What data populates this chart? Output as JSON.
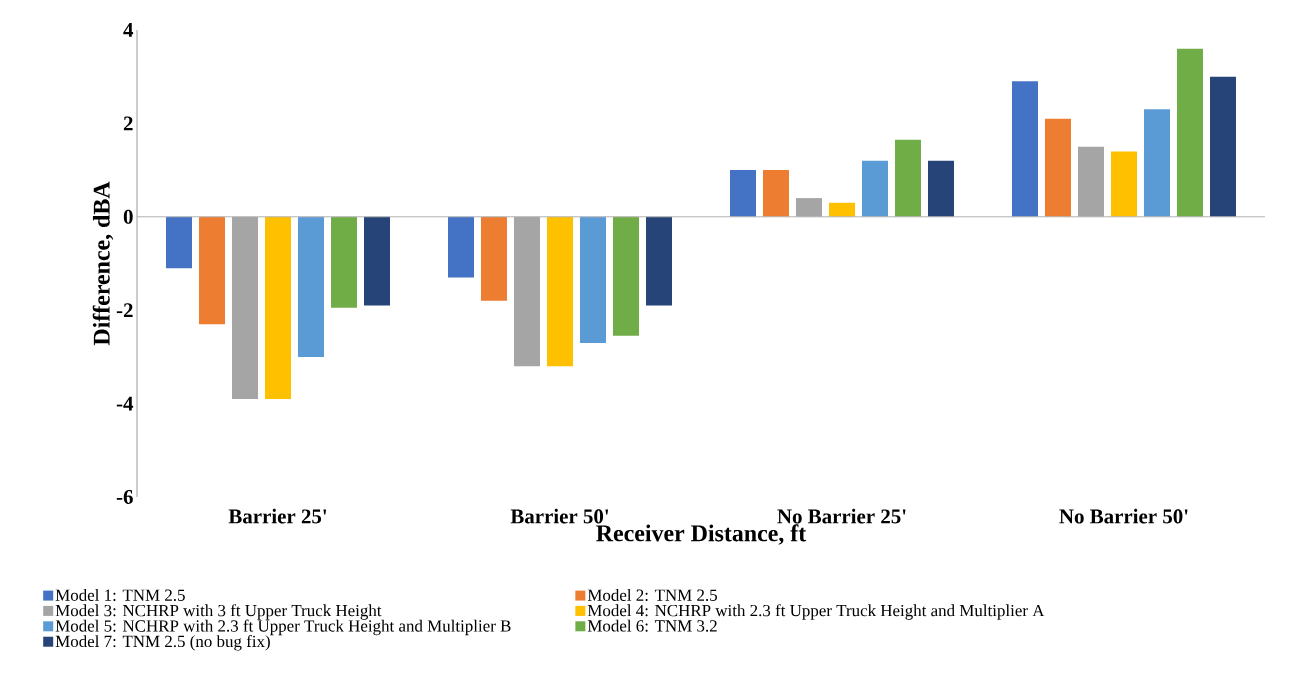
{
  "chart_data": {
    "type": "bar",
    "xlabel": "Receiver Distance, ft",
    "ylabel": "Difference, dBA",
    "categories": [
      "Barrier  25'",
      "Barrier  50'",
      "No Barrier 25'",
      "No Barrier 50'"
    ],
    "series": [
      {
        "name": "Model 1: TNM 2.5",
        "color": "#4472c4",
        "values": [
          -1.1,
          -1.3,
          1.0,
          2.9
        ]
      },
      {
        "name": "Model 2: TNM 2.5",
        "color": "#ed7d31",
        "values": [
          -2.3,
          -1.8,
          1.0,
          2.1
        ]
      },
      {
        "name": "Model 3: NCHRP with 3 ft Upper Truck Height",
        "color": "#a5a5a5",
        "values": [
          -3.9,
          -3.2,
          0.4,
          1.5
        ]
      },
      {
        "name": "Model 4: NCHRP with 2.3 ft Upper Truck Height and Multiplier A",
        "color": "#ffc000",
        "values": [
          -3.9,
          -3.2,
          0.3,
          1.4
        ]
      },
      {
        "name": "Model 5: NCHRP with 2.3 ft Upper Truck Height and Multiplier B",
        "color": "#5b9bd5",
        "values": [
          -3.0,
          -2.7,
          1.2,
          2.3
        ]
      },
      {
        "name": "Model 6: TNM 3.2",
        "color": "#70ad47",
        "values": [
          -1.95,
          -2.55,
          1.65,
          3.6
        ]
      },
      {
        "name": "Model 7: TNM 2.5 (no bug fix)",
        "color": "#264478",
        "values": [
          -1.9,
          -1.9,
          1.2,
          3.0
        ]
      }
    ],
    "ylim": [
      -6,
      4
    ],
    "yticks": [
      -6,
      -4,
      -2,
      0,
      2,
      4
    ],
    "legend": "bottom"
  }
}
